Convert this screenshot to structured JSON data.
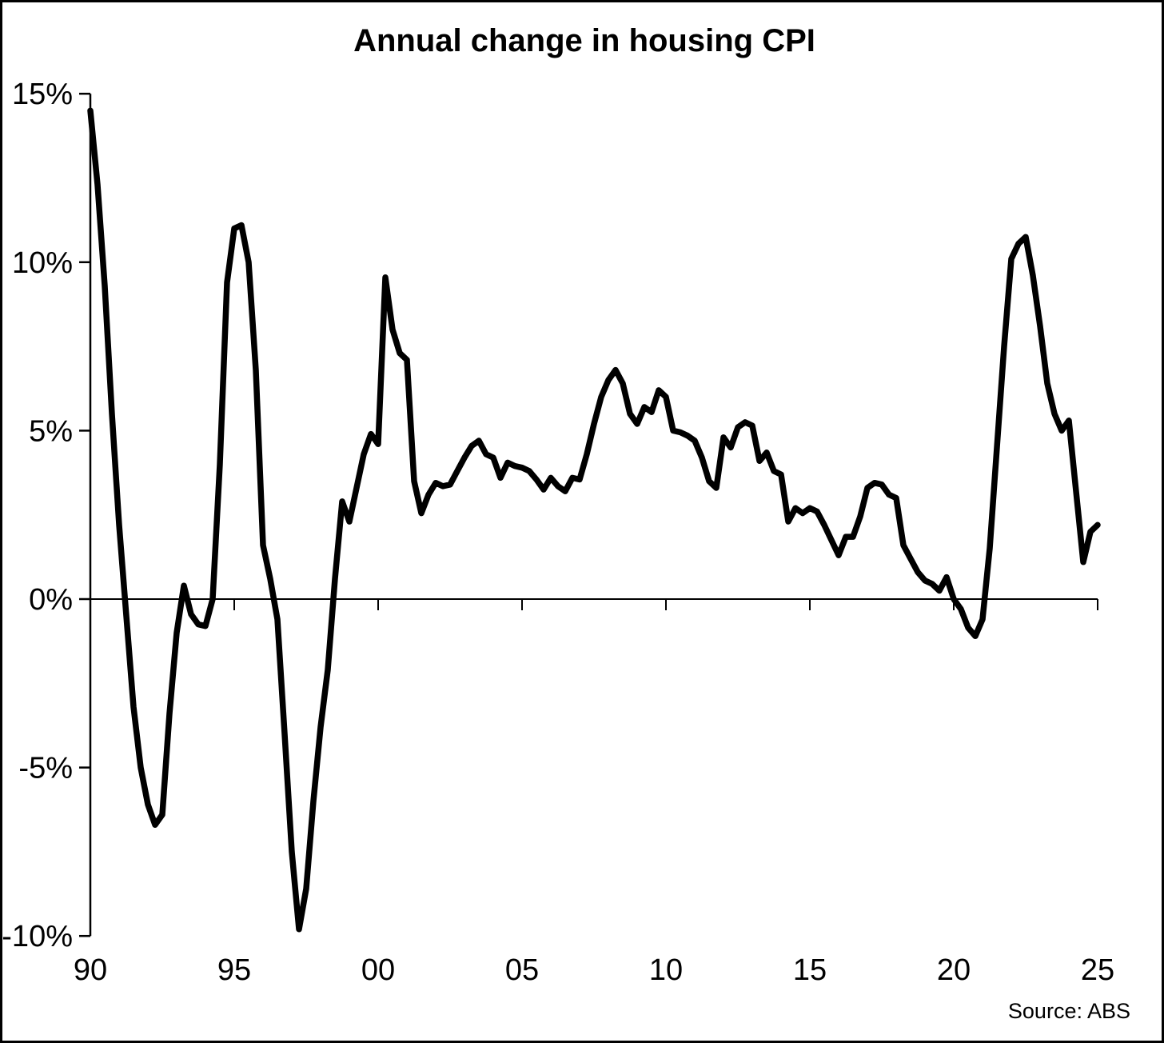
{
  "title": "Annual change in housing CPI",
  "source": "Source: ABS",
  "chart_data": {
    "type": "line",
    "title": "Annual change in housing CPI",
    "xlabel": "",
    "ylabel": "",
    "grid": false,
    "legend_position": "none",
    "line_color": "#000000",
    "background_color": "#ffffff",
    "xlim": [
      1990,
      2025
    ],
    "ylim": [
      -10,
      15
    ],
    "x_tick_years": [
      1990,
      1995,
      2000,
      2005,
      2010,
      2015,
      2020,
      2025
    ],
    "x_tick_labels": [
      "90",
      "95",
      "00",
      "05",
      "10",
      "15",
      "20",
      "25"
    ],
    "y_tick_values": [
      15,
      10,
      5,
      0,
      -5,
      -10
    ],
    "y_tick_labels": [
      "15%",
      "10%",
      "5%",
      "0%",
      "-5%",
      "-10%"
    ],
    "series": [
      {
        "name": "Annual change in housing CPI (%), quarterly",
        "x": [
          1990.0,
          1990.25,
          1990.5,
          1990.75,
          1991.0,
          1991.25,
          1991.5,
          1991.75,
          1992.0,
          1992.25,
          1992.5,
          1992.75,
          1993.0,
          1993.25,
          1993.5,
          1993.75,
          1994.0,
          1994.25,
          1994.5,
          1994.75,
          1995.0,
          1995.25,
          1995.5,
          1995.75,
          1996.0,
          1996.25,
          1996.5,
          1996.75,
          1997.0,
          1997.25,
          1997.5,
          1997.75,
          1998.0,
          1998.25,
          1998.5,
          1998.75,
          1999.0,
          1999.25,
          1999.5,
          1999.75,
          2000.0,
          2000.25,
          2000.5,
          2000.75,
          2001.0,
          2001.25,
          2001.5,
          2001.75,
          2002.0,
          2002.25,
          2002.5,
          2002.75,
          2003.0,
          2003.25,
          2003.5,
          2003.75,
          2004.0,
          2004.25,
          2004.5,
          2004.75,
          2005.0,
          2005.25,
          2005.5,
          2005.75,
          2006.0,
          2006.25,
          2006.5,
          2006.75,
          2007.0,
          2007.25,
          2007.5,
          2007.75,
          2008.0,
          2008.25,
          2008.5,
          2008.75,
          2009.0,
          2009.25,
          2009.5,
          2009.75,
          2010.0,
          2010.25,
          2010.5,
          2010.75,
          2011.0,
          2011.25,
          2011.5,
          2011.75,
          2012.0,
          2012.25,
          2012.5,
          2012.75,
          2013.0,
          2013.25,
          2013.5,
          2013.75,
          2014.0,
          2014.25,
          2014.5,
          2014.75,
          2015.0,
          2015.25,
          2015.5,
          2015.75,
          2016.0,
          2016.25,
          2016.5,
          2016.75,
          2017.0,
          2017.25,
          2017.5,
          2017.75,
          2018.0,
          2018.25,
          2018.5,
          2018.75,
          2019.0,
          2019.25,
          2019.5,
          2019.75,
          2020.0,
          2020.25,
          2020.5,
          2020.75,
          2021.0,
          2021.25,
          2021.5,
          2021.75,
          2022.0,
          2022.25,
          2022.5,
          2022.75,
          2023.0,
          2023.25,
          2023.5,
          2023.75,
          2024.0,
          2024.25,
          2024.5,
          2024.75,
          2025.0
        ],
        "y": [
          14.5,
          12.3,
          9.3,
          5.5,
          2.2,
          -0.5,
          -3.2,
          -5.0,
          -6.1,
          -6.7,
          -6.4,
          -3.4,
          -1.0,
          0.4,
          -0.45,
          -0.75,
          -0.8,
          0.0,
          4.0,
          9.4,
          11.0,
          11.1,
          10.0,
          6.8,
          1.6,
          0.6,
          -0.6,
          -4.0,
          -7.5,
          -9.8,
          -8.6,
          -6.0,
          -3.8,
          -2.1,
          0.6,
          2.9,
          2.3,
          3.3,
          4.3,
          4.9,
          4.6,
          9.55,
          8.0,
          7.3,
          7.1,
          3.5,
          2.55,
          3.1,
          3.45,
          3.35,
          3.4,
          3.8,
          4.2,
          4.55,
          4.7,
          4.3,
          4.2,
          3.6,
          4.05,
          3.95,
          3.9,
          3.8,
          3.55,
          3.25,
          3.6,
          3.35,
          3.2,
          3.6,
          3.55,
          4.3,
          5.2,
          6.0,
          6.5,
          6.8,
          6.4,
          5.5,
          5.2,
          5.7,
          5.55,
          6.2,
          6.0,
          5.0,
          4.95,
          4.85,
          4.7,
          4.2,
          3.5,
          3.3,
          4.8,
          4.5,
          5.1,
          5.25,
          5.15,
          4.1,
          4.35,
          3.8,
          3.7,
          2.3,
          2.7,
          2.55,
          2.7,
          2.6,
          2.2,
          1.75,
          1.3,
          1.85,
          1.85,
          2.45,
          3.3,
          3.45,
          3.4,
          3.1,
          3.0,
          1.6,
          1.2,
          0.8,
          0.55,
          0.45,
          0.25,
          0.65,
          0.0,
          -0.3,
          -0.85,
          -1.1,
          -0.6,
          1.5,
          4.5,
          7.5,
          10.1,
          10.55,
          10.75,
          9.6,
          8.1,
          6.4,
          5.5,
          5.0,
          5.3,
          3.2,
          1.1,
          2.0,
          2.2
        ]
      }
    ]
  }
}
